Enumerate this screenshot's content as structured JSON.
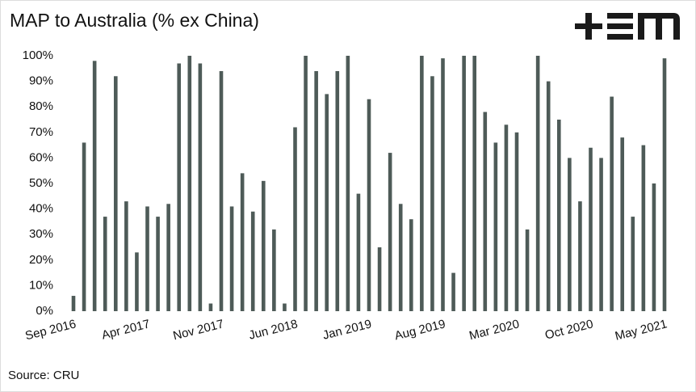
{
  "chart_data": {
    "type": "bar",
    "title": "MAP to Australia (% ex China)",
    "source": "Source: CRU",
    "categories": [
      "Sep 2016",
      null,
      null,
      null,
      null,
      null,
      null,
      "Apr 2017",
      null,
      null,
      null,
      null,
      null,
      null,
      "Nov 2017",
      null,
      null,
      null,
      null,
      null,
      null,
      "Jun 2018",
      null,
      null,
      null,
      null,
      null,
      null,
      "Jan 2019",
      null,
      null,
      null,
      null,
      null,
      null,
      "Aug 2019",
      null,
      null,
      null,
      null,
      null,
      null,
      "Mar 2020",
      null,
      null,
      null,
      null,
      null,
      null,
      "Oct 2020",
      null,
      null,
      null,
      null,
      null,
      null,
      "May 2021"
    ],
    "values": [
      6,
      66,
      98,
      37,
      92,
      43,
      23,
      41,
      37,
      42,
      97,
      100,
      97,
      3,
      94,
      41,
      54,
      39,
      51,
      32,
      3,
      72,
      100,
      94,
      85,
      94,
      100,
      46,
      83,
      25,
      62,
      42,
      36,
      100,
      92,
      99,
      15,
      100,
      100,
      78,
      66,
      73,
      70,
      32,
      100,
      90,
      75,
      60,
      43,
      64,
      60,
      84,
      68,
      37,
      65,
      50,
      99
    ],
    "color": "#4e5b58",
    "ylim": [
      0,
      100
    ],
    "yticks": [
      {
        "value": 0,
        "label": "0%"
      },
      {
        "value": 10,
        "label": "10%"
      },
      {
        "value": 20,
        "label": "20%"
      },
      {
        "value": 30,
        "label": "30%"
      },
      {
        "value": 40,
        "label": "40%"
      },
      {
        "value": 50,
        "label": "50%"
      },
      {
        "value": 60,
        "label": "60%"
      },
      {
        "value": 70,
        "label": "70%"
      },
      {
        "value": 80,
        "label": "80%"
      },
      {
        "value": 90,
        "label": "90%"
      },
      {
        "value": 100,
        "label": "100%"
      }
    ],
    "grid": false
  }
}
